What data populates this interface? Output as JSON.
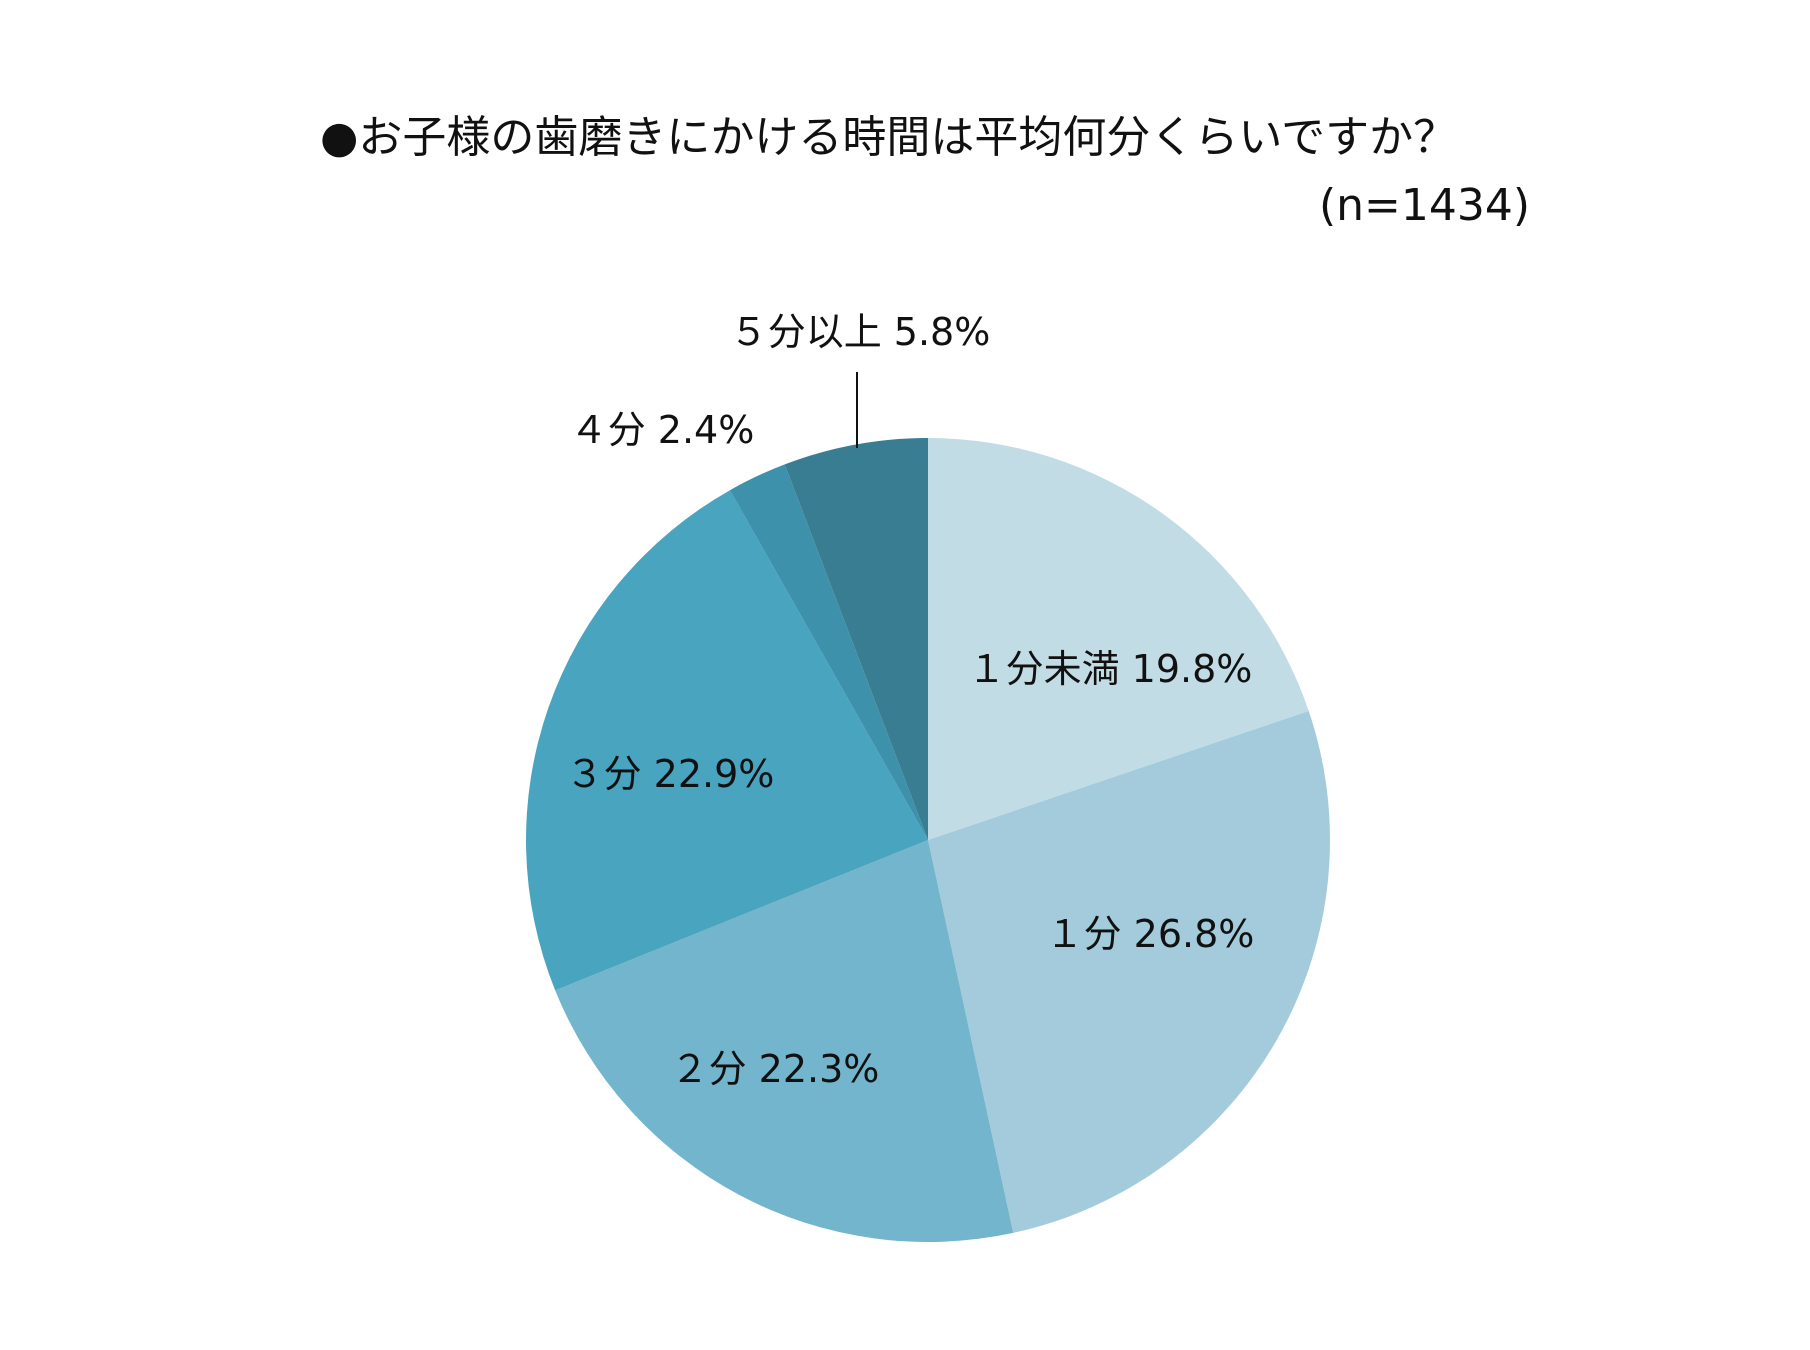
{
  "chart_data": {
    "type": "pie",
    "title": "●お子様の歯磨きにかける時間は平均何分くらいですか？",
    "subtitle": "(n=1434)",
    "slices": [
      {
        "label": "１分未満",
        "value": 19.8,
        "display": "１分未満 19.8%",
        "color": "#c2dce5"
      },
      {
        "label": "１分",
        "value": 26.8,
        "display": "１分 26.8%",
        "color": "#a3cbdb"
      },
      {
        "label": "２分",
        "value": 22.3,
        "display": "２分 22.3%",
        "color": "#73b5cc"
      },
      {
        "label": "３分",
        "value": 22.9,
        "display": "３分 22.9%",
        "color": "#49a4c0"
      },
      {
        "label": "４分",
        "value": 2.4,
        "display": "４分 2.4%",
        "color": "#3d91ab"
      },
      {
        "label": "５分以上",
        "value": 5.8,
        "display": "５分以上 5.8%",
        "color": "#387d92"
      }
    ]
  }
}
